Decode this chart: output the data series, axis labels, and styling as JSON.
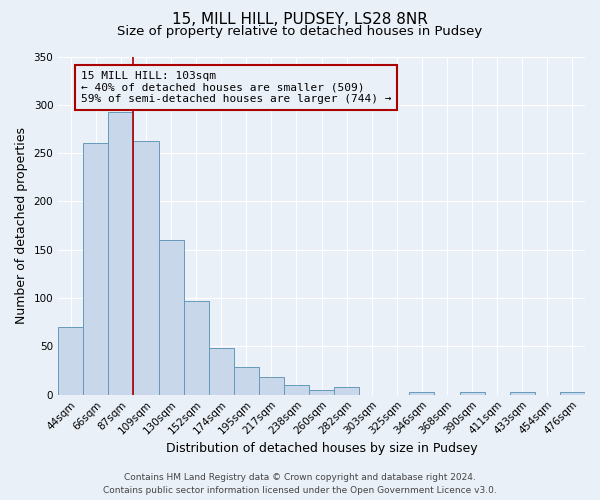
{
  "title": "15, MILL HILL, PUDSEY, LS28 8NR",
  "subtitle": "Size of property relative to detached houses in Pudsey",
  "xlabel": "Distribution of detached houses by size in Pudsey",
  "ylabel": "Number of detached properties",
  "bar_labels": [
    "44sqm",
    "66sqm",
    "87sqm",
    "109sqm",
    "130sqm",
    "152sqm",
    "174sqm",
    "195sqm",
    "217sqm",
    "238sqm",
    "260sqm",
    "282sqm",
    "303sqm",
    "325sqm",
    "346sqm",
    "368sqm",
    "390sqm",
    "411sqm",
    "433sqm",
    "454sqm",
    "476sqm"
  ],
  "bar_values": [
    70,
    260,
    293,
    263,
    160,
    97,
    48,
    29,
    18,
    10,
    5,
    8,
    0,
    0,
    3,
    0,
    3,
    0,
    3,
    0,
    3
  ],
  "bar_color": "#c8d8ea",
  "bar_edge_color": "#6699bb",
  "vline_x_index": 2.5,
  "vline_color": "#aa0000",
  "ylim": [
    0,
    350
  ],
  "yticks": [
    0,
    50,
    100,
    150,
    200,
    250,
    300,
    350
  ],
  "annotation_title": "15 MILL HILL: 103sqm",
  "annotation_line1": "← 40% of detached houses are smaller (509)",
  "annotation_line2": "59% of semi-detached houses are larger (744) →",
  "annotation_box_edge_color": "#aa0000",
  "footer_line1": "Contains HM Land Registry data © Crown copyright and database right 2024.",
  "footer_line2": "Contains public sector information licensed under the Open Government Licence v3.0.",
  "background_color": "#eaf0f8",
  "grid_color": "#ffffff",
  "title_fontsize": 11,
  "subtitle_fontsize": 9.5,
  "axis_label_fontsize": 9,
  "tick_fontsize": 7.5,
  "footer_fontsize": 6.5
}
